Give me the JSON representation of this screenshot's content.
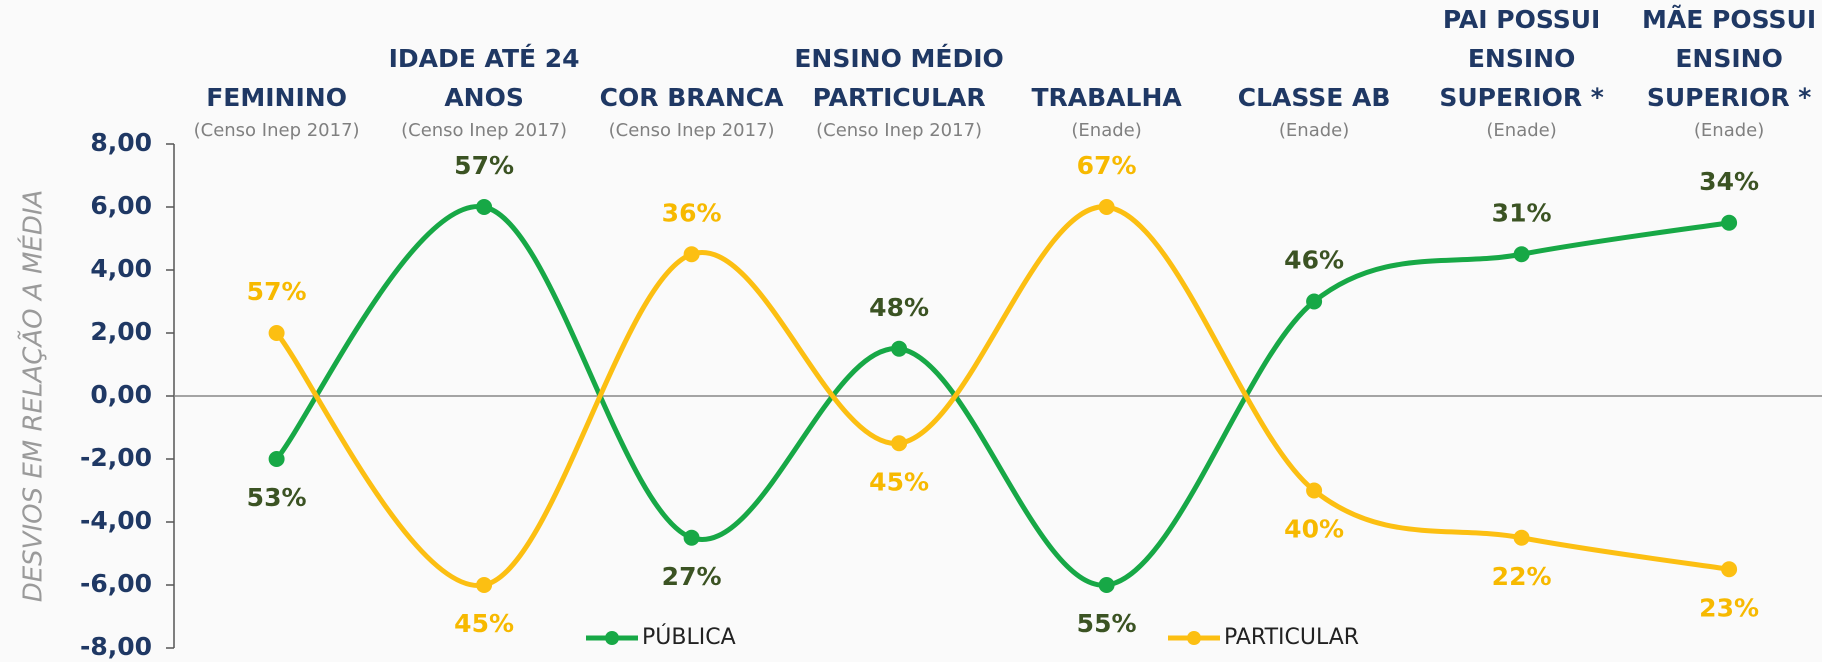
{
  "chart_data": {
    "type": "line",
    "y_label": "DESVIOS EM RELAÇÃO A MÉDIA",
    "categories": [
      "FEMININO",
      "IDADE ATÉ 24 ANOS",
      "COR BRANCA",
      "ENSINO MÉDIO PARTICULAR",
      "TRABALHA",
      "CLASSE AB",
      "PAI POSSUI ENSINO SUPERIOR *",
      "MÃE POSSUI ENSINO SUPERIOR *"
    ],
    "sources": [
      "(Censo Inep 2017)",
      "(Censo Inep 2017)",
      "(Censo Inep 2017)",
      "(Censo Inep 2017)",
      "(Enade)",
      "(Enade)",
      "(Enade)",
      "(Enade)"
    ],
    "series": [
      {
        "name": "PÚBLICA",
        "color": "#17a846",
        "label_color": "#3b5323",
        "values": [
          -2,
          6,
          -4.5,
          1.5,
          -6,
          3,
          4.5,
          5.5
        ],
        "value_labels": [
          "53%",
          "57%",
          "27%",
          "48%",
          "55%",
          "46%",
          "31%",
          "34%"
        ]
      },
      {
        "name": "PARTICULAR",
        "color": "#fcbf12",
        "label_color": "#f7b900",
        "values": [
          2,
          -6,
          4.5,
          -1.5,
          6,
          -3,
          -4.5,
          -5.5
        ],
        "value_labels": [
          "57%",
          "45%",
          "36%",
          "45%",
          "67%",
          "40%",
          "22%",
          "23%"
        ]
      }
    ],
    "ylim": [
      -8,
      8
    ],
    "yticks": [
      {
        "value": -8,
        "label": "-8,00"
      },
      {
        "value": -6,
        "label": "-6,00"
      },
      {
        "value": -4,
        "label": "-4,00"
      },
      {
        "value": -2,
        "label": "-2,00"
      },
      {
        "value": 0,
        "label": "0,00"
      },
      {
        "value": 2,
        "label": "2,00"
      },
      {
        "value": 4,
        "label": "4,00"
      },
      {
        "value": 6,
        "label": "6,00"
      },
      {
        "value": 8,
        "label": "8,00"
      }
    ]
  }
}
